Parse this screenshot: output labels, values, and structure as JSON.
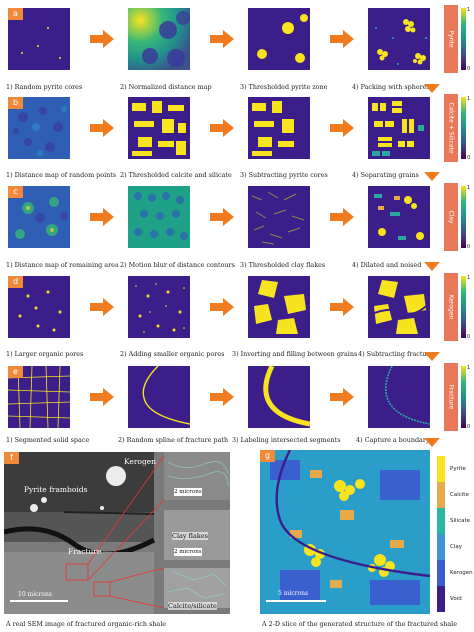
{
  "rows": [
    {
      "badge": "a",
      "captions": [
        "1) Random pyrite cores",
        "2) Normalized distance map",
        "3) Thresholded pyrite zone",
        "4) Packing with spheres"
      ],
      "side": "Pyrite"
    },
    {
      "badge": "b",
      "captions": [
        "1) Distance map of random points",
        "2) Thresholded calcite and silicate",
        "3) Subtracting pyrite cores",
        "4) Separating grains"
      ],
      "side": "Calcite + Silicate"
    },
    {
      "badge": "c",
      "captions": [
        "1) Distance map of remaining area",
        "2) Motion blur of distance contours",
        "3) Thresholded clay flakes",
        "4) Dilated and noised"
      ],
      "side": "Clay"
    },
    {
      "badge": "d",
      "captions": [
        "1) Larger organic pores",
        "2) Adding smaller organic pores",
        "3) Inverting and filling between grains",
        "4) Subtracting fractures"
      ],
      "side": "Kerogen"
    },
    {
      "badge": "e",
      "captions": [
        "1) Segmented solid space",
        "2) Random spline of fracture path",
        "3) Labeling intersected segments",
        "4) Capture a boundary"
      ],
      "side": "Fracture"
    }
  ],
  "colorbar": {
    "top": "1",
    "bottom": "0"
  },
  "sem": {
    "badge": "f",
    "kerogen": "Kerogen",
    "pyrite": "Pyrite framboids",
    "fracture": "Fracture",
    "clay": "Clay flakes",
    "calcite": "Calcite/silicate",
    "scale_main": "10 microns",
    "scale_inset1": "2 microns",
    "scale_inset2": "2 microns",
    "caption": "A real SEM image of fractured organic-rich shale"
  },
  "gen": {
    "badge": "g",
    "scale": "5 microns",
    "caption": "A 2-D slice of the generated structure of the fractured shale",
    "legend": [
      {
        "label": "Pyrite",
        "color": "#f7e41f"
      },
      {
        "label": "Calcite",
        "color": "#e8a94a"
      },
      {
        "label": "Silicate",
        "color": "#29b6a3"
      },
      {
        "label": "Clay",
        "color": "#3f96d0"
      },
      {
        "label": "Kerogen",
        "color": "#3a5fcf"
      },
      {
        "label": "Void",
        "color": "#3b1e8a"
      }
    ]
  }
}
